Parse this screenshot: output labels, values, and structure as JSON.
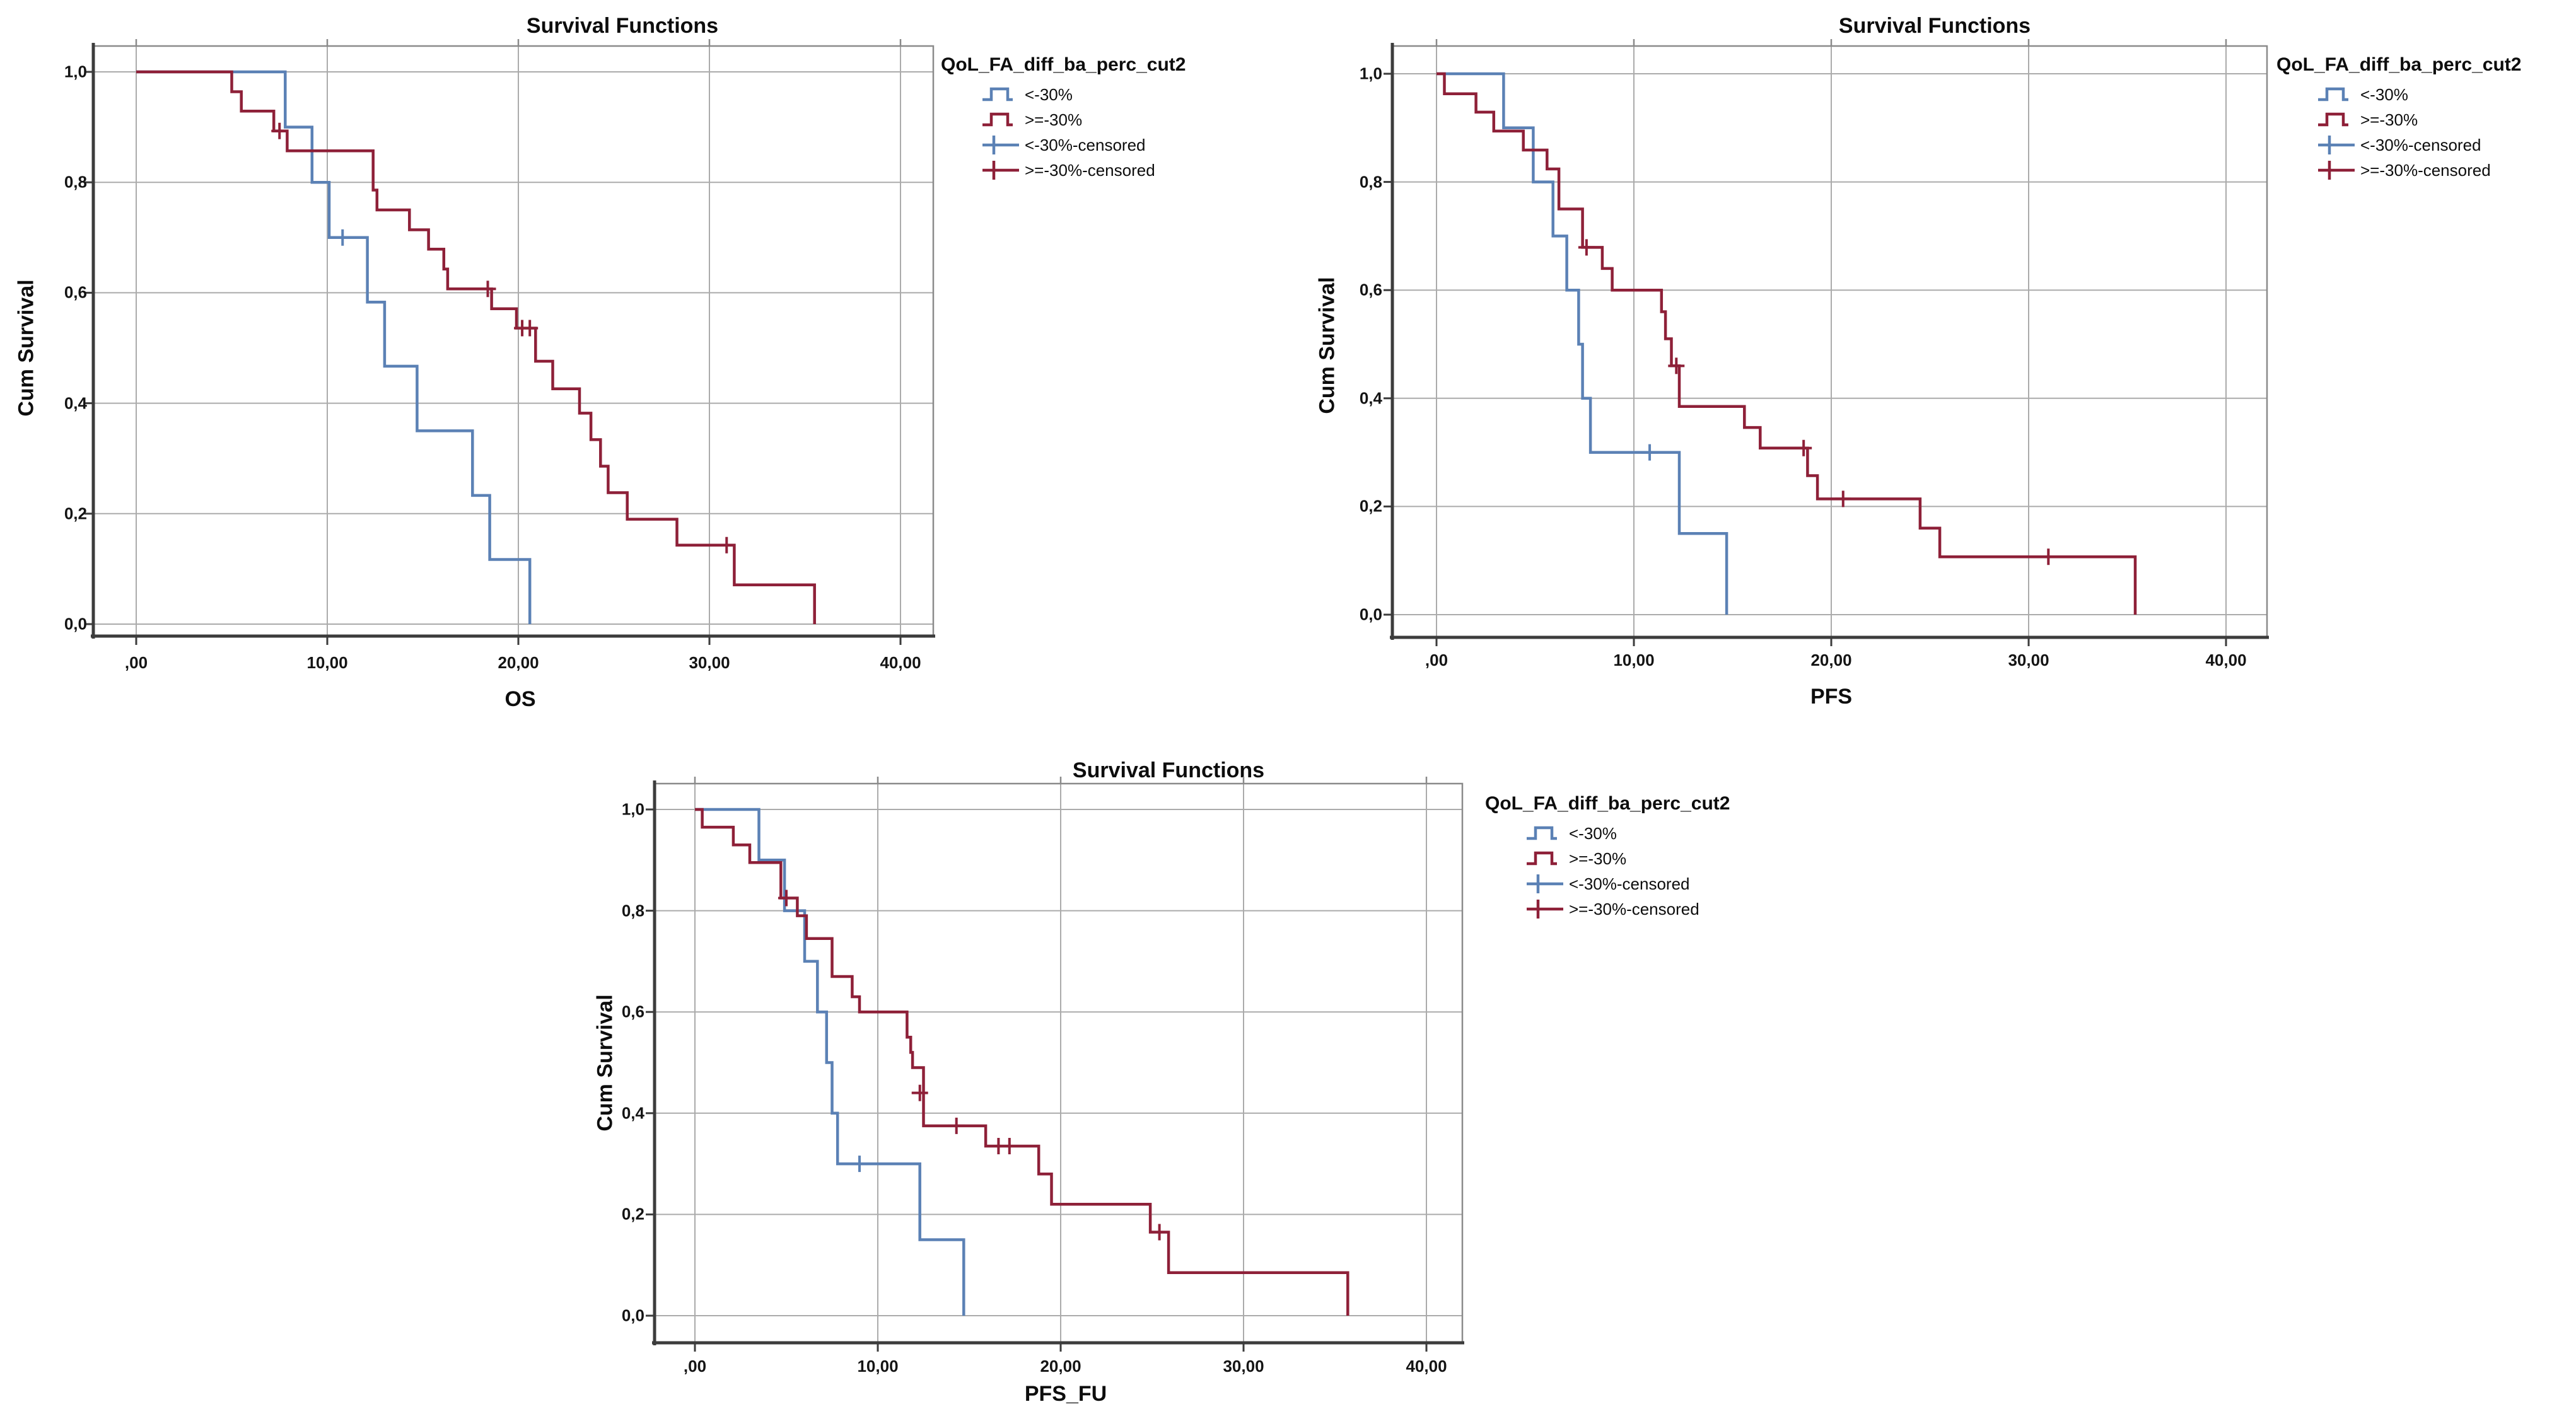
{
  "colors": {
    "group_lt30": "#5b81b5",
    "group_ge30": "#8e2038",
    "grid": "#ababab",
    "frame": "#8a8a8a",
    "axis": "#3c3c3c",
    "text": "#0d0d0d"
  },
  "legend": {
    "title": "QoL_FA_diff_ba_perc_cut2",
    "items": [
      {
        "label": "<-30%",
        "type": "line",
        "color": "#5b81b5"
      },
      {
        "label": ">=-30%",
        "type": "line",
        "color": "#8e2038"
      },
      {
        "label": "<-30%-censored",
        "type": "censor",
        "color": "#5b81b5"
      },
      {
        "label": ">=-30%-censored",
        "type": "censor",
        "color": "#8e2038"
      }
    ]
  },
  "chart_data": [
    {
      "type": "line",
      "subtype": "kaplan-meier-step",
      "title": "Survival Functions",
      "xlabel": "OS",
      "ylabel": "Cum Survival",
      "xlim": [
        0,
        40
      ],
      "ylim": [
        0.0,
        1.0
      ],
      "grid": true,
      "legend_position": "right",
      "x_tick_values": [
        0,
        10,
        20,
        30,
        40
      ],
      "x_tick_labels": [
        ",00",
        "10,00",
        "20,00",
        "30,00",
        "40,00"
      ],
      "y_tick_values": [
        1.0,
        0.8,
        0.6,
        0.4,
        0.2,
        0.0
      ],
      "y_tick_labels": [
        "1,0",
        "0,8",
        "0,6",
        "0,4",
        "0,2",
        "0,0"
      ],
      "series": [
        {
          "name": "<-30%",
          "color": "#5b81b5",
          "steps": [
            [
              0,
              1.0
            ],
            [
              7.8,
              0.9
            ],
            [
              9.2,
              0.8
            ],
            [
              10.1,
              0.7
            ],
            [
              12.1,
              0.583
            ],
            [
              13.0,
              0.467
            ],
            [
              14.7,
              0.35
            ],
            [
              17.6,
              0.233
            ],
            [
              18.5,
              0.117
            ],
            [
              20.6,
              0.0
            ]
          ],
          "censored": [
            [
              10.8,
              0.7
            ]
          ]
        },
        {
          "name": ">=-30%",
          "color": "#8e2038",
          "steps": [
            [
              0,
              1.0
            ],
            [
              5.0,
              0.964
            ],
            [
              5.5,
              0.929
            ],
            [
              7.2,
              0.893
            ],
            [
              7.9,
              0.857
            ],
            [
              12.4,
              0.786
            ],
            [
              12.6,
              0.75
            ],
            [
              14.3,
              0.714
            ],
            [
              15.3,
              0.679
            ],
            [
              16.1,
              0.643
            ],
            [
              16.3,
              0.607
            ],
            [
              18.6,
              0.571
            ],
            [
              19.9,
              0.536
            ],
            [
              20.9,
              0.476
            ],
            [
              21.8,
              0.426
            ],
            [
              23.2,
              0.382
            ],
            [
              23.8,
              0.334
            ],
            [
              24.3,
              0.286
            ],
            [
              24.7,
              0.238
            ],
            [
              25.7,
              0.19
            ],
            [
              28.3,
              0.143
            ],
            [
              31.3,
              0.071
            ],
            [
              35.5,
              0.0
            ]
          ],
          "censored": [
            [
              7.5,
              0.893
            ],
            [
              18.4,
              0.607
            ],
            [
              20.2,
              0.536
            ],
            [
              20.6,
              0.536
            ],
            [
              30.9,
              0.143
            ]
          ]
        }
      ]
    },
    {
      "type": "line",
      "subtype": "kaplan-meier-step",
      "title": "Survival Functions",
      "xlabel": "PFS",
      "ylabel": "Cum Survival",
      "xlim": [
        0,
        40
      ],
      "ylim": [
        0.0,
        1.0
      ],
      "grid": true,
      "legend_position": "right",
      "x_tick_values": [
        0,
        10,
        20,
        30,
        40
      ],
      "x_tick_labels": [
        ",00",
        "10,00",
        "20,00",
        "30,00",
        "40,00"
      ],
      "y_tick_values": [
        1.0,
        0.8,
        0.6,
        0.4,
        0.2,
        0.0
      ],
      "y_tick_labels": [
        "1,0",
        "0,8",
        "0,6",
        "0,4",
        "0,2",
        "0,0"
      ],
      "series": [
        {
          "name": "<-30%",
          "color": "#5b81b5",
          "steps": [
            [
              0,
              1.0
            ],
            [
              3.4,
              0.9
            ],
            [
              4.9,
              0.8
            ],
            [
              5.9,
              0.7
            ],
            [
              6.6,
              0.6
            ],
            [
              7.2,
              0.5
            ],
            [
              7.4,
              0.4
            ],
            [
              7.8,
              0.3
            ],
            [
              12.3,
              0.15
            ],
            [
              14.7,
              0.0
            ]
          ],
          "censored": [
            [
              10.8,
              0.3
            ]
          ]
        },
        {
          "name": ">=-30%",
          "color": "#8e2038",
          "steps": [
            [
              0,
              1.0
            ],
            [
              0.4,
              0.963
            ],
            [
              2.0,
              0.929
            ],
            [
              2.9,
              0.894
            ],
            [
              4.4,
              0.859
            ],
            [
              5.6,
              0.824
            ],
            [
              6.2,
              0.75
            ],
            [
              7.4,
              0.679
            ],
            [
              8.4,
              0.64
            ],
            [
              8.9,
              0.6
            ],
            [
              11.4,
              0.56
            ],
            [
              11.6,
              0.51
            ],
            [
              11.9,
              0.46
            ],
            [
              12.3,
              0.385
            ],
            [
              15.6,
              0.346
            ],
            [
              16.4,
              0.308
            ],
            [
              18.8,
              0.257
            ],
            [
              19.3,
              0.214
            ],
            [
              24.5,
              0.16
            ],
            [
              25.5,
              0.107
            ],
            [
              35.4,
              0.0
            ]
          ],
          "censored": [
            [
              7.6,
              0.679
            ],
            [
              12.15,
              0.46
            ],
            [
              18.6,
              0.308
            ],
            [
              20.6,
              0.214
            ],
            [
              31.0,
              0.107
            ]
          ]
        }
      ]
    },
    {
      "type": "line",
      "subtype": "kaplan-meier-step",
      "title": "Survival Functions",
      "xlabel": "PFS_FU",
      "ylabel": "Cum Survival",
      "xlim": [
        0,
        40
      ],
      "ylim": [
        0.0,
        1.0
      ],
      "grid": true,
      "legend_position": "right",
      "x_tick_values": [
        0,
        10,
        20,
        30,
        40
      ],
      "x_tick_labels": [
        ",00",
        "10,00",
        "20,00",
        "30,00",
        "40,00"
      ],
      "y_tick_values": [
        1.0,
        0.8,
        0.6,
        0.4,
        0.2,
        0.0
      ],
      "y_tick_labels": [
        "1,0",
        "0,8",
        "0,6",
        "0,4",
        "0,2",
        "0,0"
      ],
      "series": [
        {
          "name": "<-30%",
          "color": "#5b81b5",
          "steps": [
            [
              0,
              1.0
            ],
            [
              3.5,
              0.9
            ],
            [
              4.9,
              0.8
            ],
            [
              6.0,
              0.7
            ],
            [
              6.7,
              0.6
            ],
            [
              7.2,
              0.5
            ],
            [
              7.5,
              0.4
            ],
            [
              7.8,
              0.3
            ],
            [
              12.3,
              0.15
            ],
            [
              14.7,
              0.0
            ]
          ],
          "censored": [
            [
              9.0,
              0.3
            ]
          ]
        },
        {
          "name": ">=-30%",
          "color": "#8e2038",
          "steps": [
            [
              0,
              1.0
            ],
            [
              0.4,
              0.965
            ],
            [
              2.1,
              0.93
            ],
            [
              3.0,
              0.895
            ],
            [
              4.7,
              0.825
            ],
            [
              5.6,
              0.79
            ],
            [
              6.1,
              0.745
            ],
            [
              7.5,
              0.67
            ],
            [
              8.6,
              0.63
            ],
            [
              9.0,
              0.6
            ],
            [
              11.6,
              0.55
            ],
            [
              11.8,
              0.52
            ],
            [
              11.9,
              0.49
            ],
            [
              12.5,
              0.375
            ],
            [
              15.9,
              0.335
            ],
            [
              18.8,
              0.28
            ],
            [
              19.5,
              0.22
            ],
            [
              24.9,
              0.165
            ],
            [
              25.9,
              0.085
            ],
            [
              35.7,
              0.0
            ]
          ],
          "censored": [
            [
              5.0,
              0.825
            ],
            [
              12.3,
              0.44
            ],
            [
              14.3,
              0.375
            ],
            [
              16.6,
              0.335
            ],
            [
              17.2,
              0.335
            ],
            [
              25.4,
              0.165
            ]
          ]
        }
      ]
    }
  ]
}
